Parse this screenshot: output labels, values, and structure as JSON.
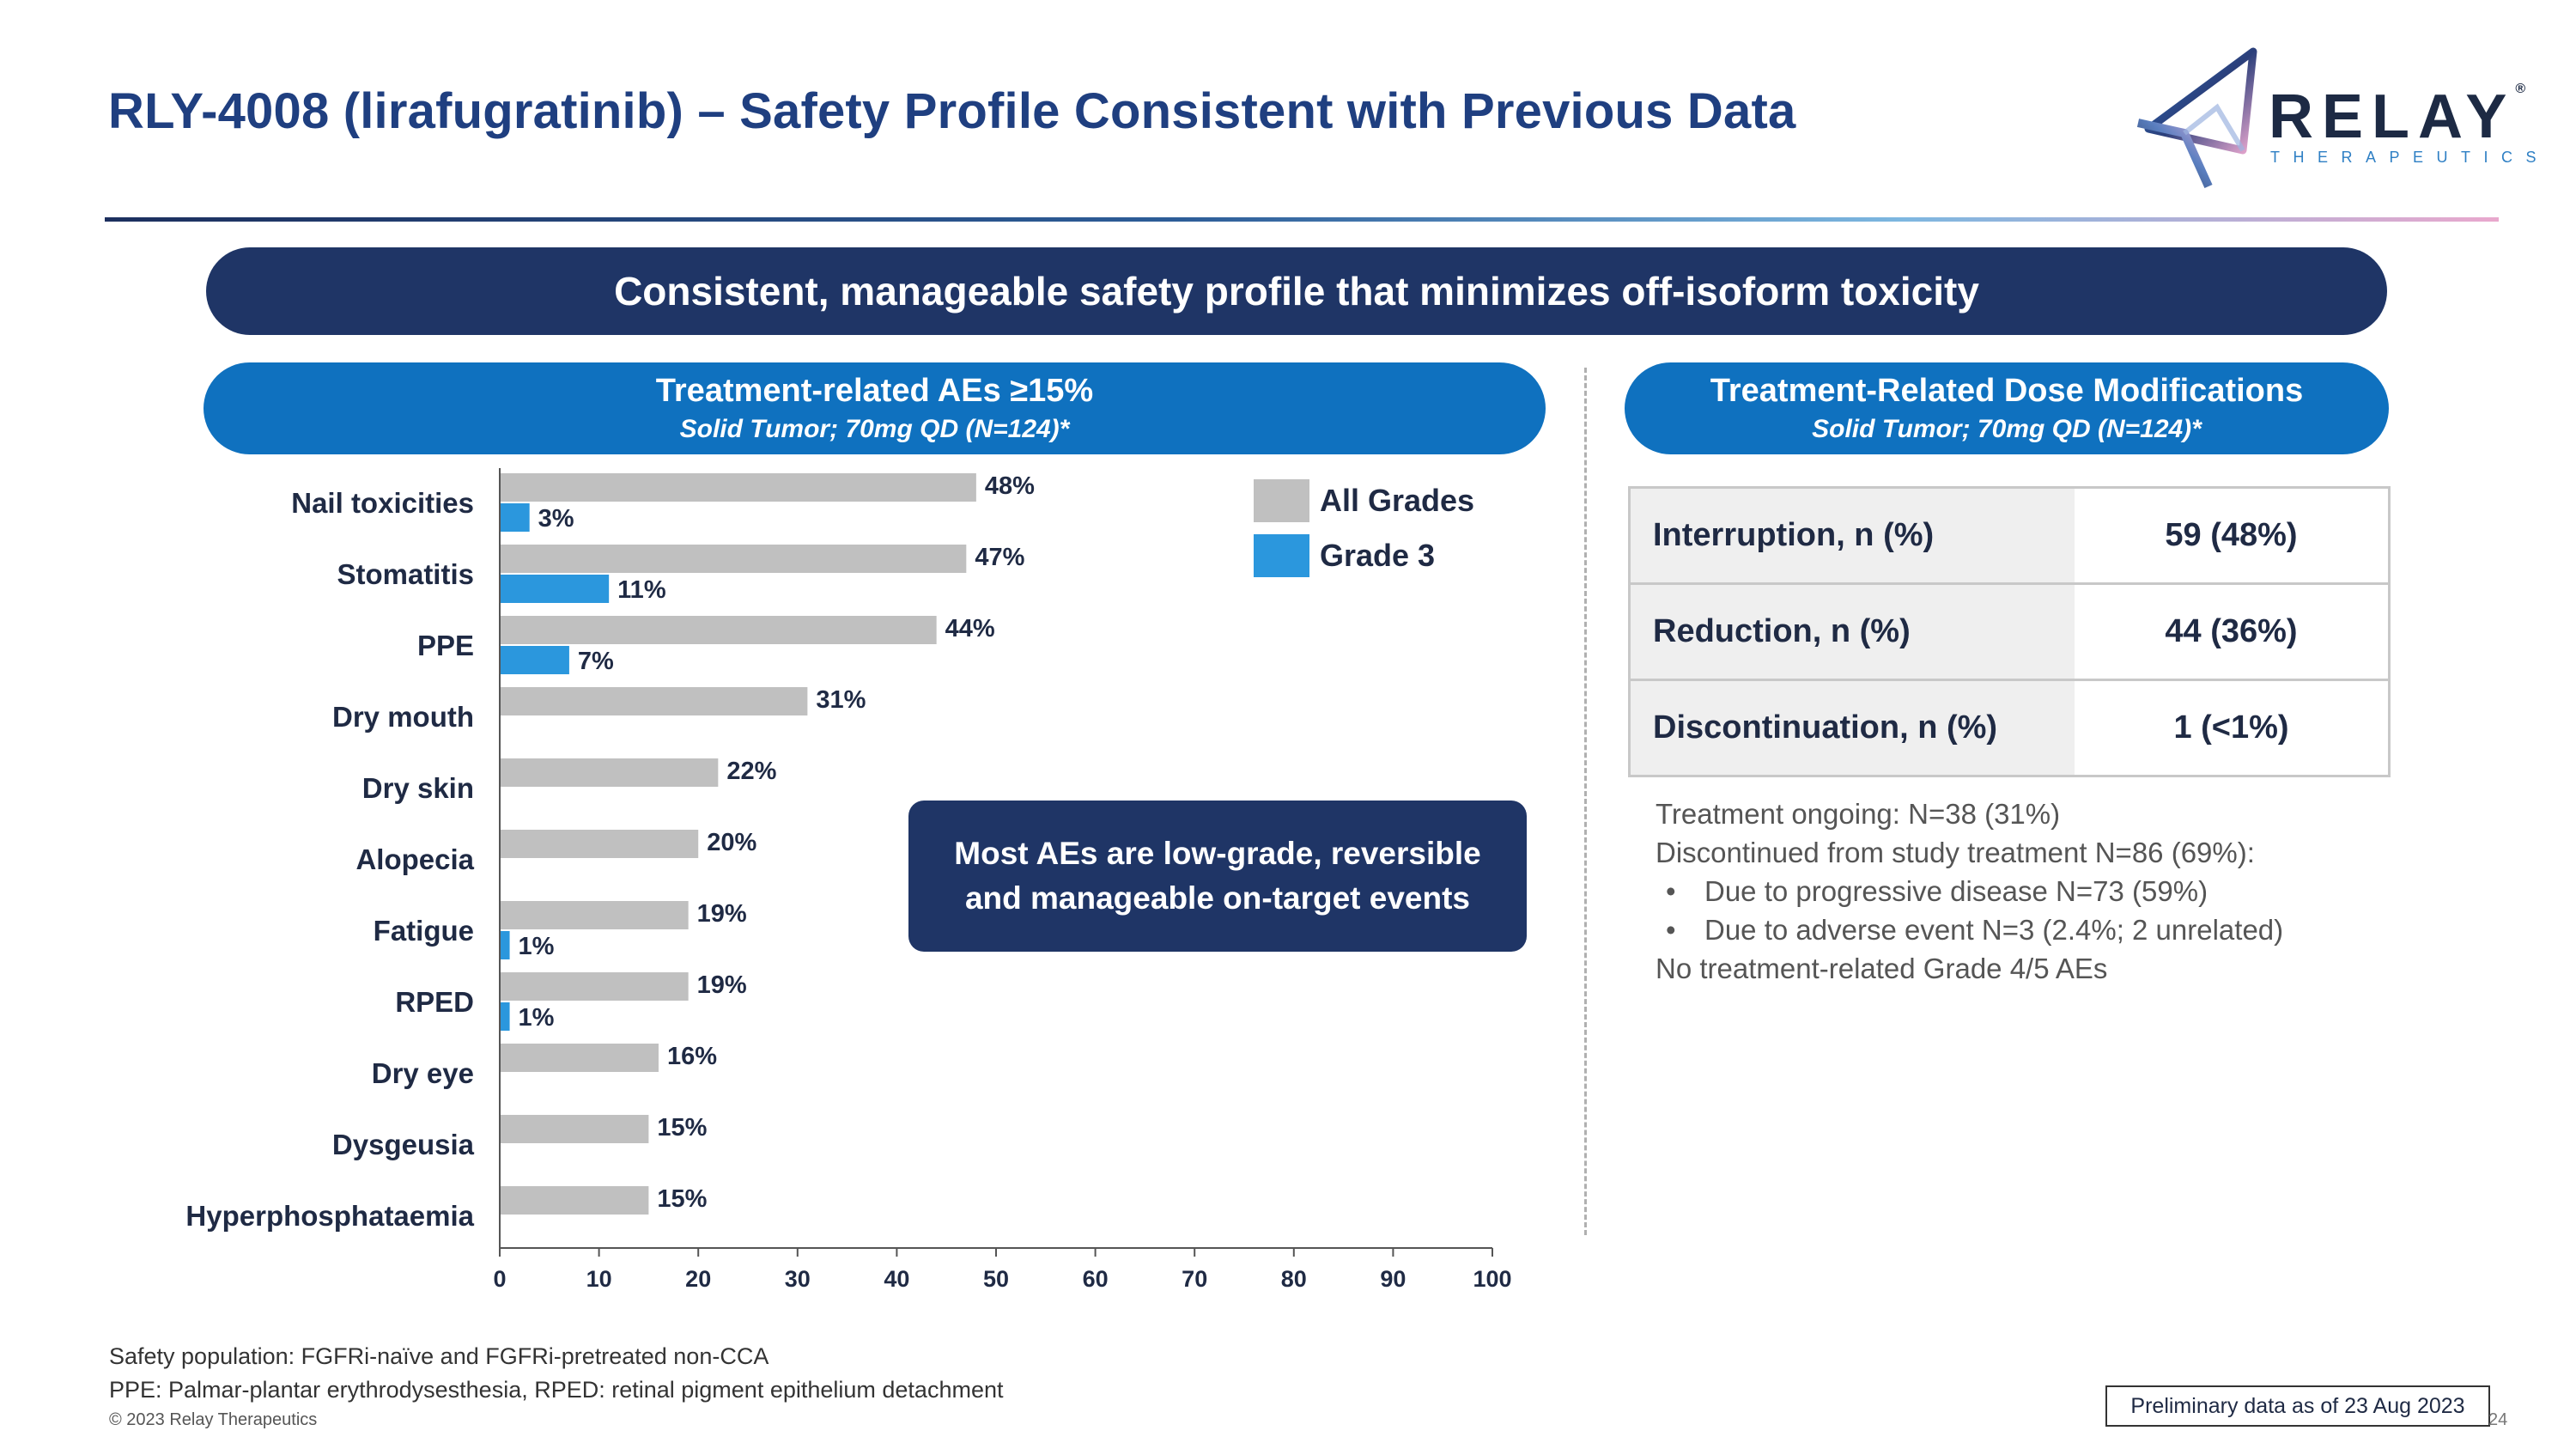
{
  "title": "RLY-4008 (lirafugratinib) – Safety Profile Consistent with Previous Data",
  "logo": {
    "name": "RELAY",
    "sub": "THERAPEUTICS",
    "mark": "®"
  },
  "banner": "Consistent, manageable safety profile that minimizes off-isoform toxicity",
  "left_panel": {
    "heading": "Treatment-related AEs ≥15%",
    "subheading": "Solid Tumor; 70mg QD (N=124)*"
  },
  "right_panel": {
    "heading": "Treatment-Related Dose Modifications",
    "subheading": "Solid Tumor; 70mg QD (N=124)*"
  },
  "chart_data": {
    "type": "bar",
    "orientation": "horizontal",
    "categories": [
      "Nail toxicities",
      "Stomatitis",
      "PPE",
      "Dry mouth",
      "Dry skin",
      "Alopecia",
      "Fatigue",
      "RPED",
      "Dry eye",
      "Dysgeusia",
      "Hyperphosphataemia"
    ],
    "series": [
      {
        "name": "All Grades",
        "color": "#c0c0c0",
        "values": [
          48,
          47,
          44,
          31,
          22,
          20,
          19,
          19,
          16,
          15,
          15
        ]
      },
      {
        "name": "Grade 3",
        "color": "#2b97dd",
        "values": [
          3,
          11,
          7,
          null,
          null,
          null,
          1,
          1,
          null,
          null,
          null
        ]
      }
    ],
    "xlim": [
      0,
      100
    ],
    "xticks": [
      0,
      10,
      20,
      30,
      40,
      50,
      60,
      70,
      80,
      90,
      100
    ],
    "value_suffix": "%",
    "legend_position": "top-right"
  },
  "callout": [
    "Most AEs are  low-grade, reversible",
    "and manageable on-target events"
  ],
  "dose_modifications": [
    {
      "label": "Interruption, n (%)",
      "value": "59 (48%)"
    },
    {
      "label": "Reduction, n (%)",
      "value": "44 (36%)"
    },
    {
      "label": "Discontinuation, n (%)",
      "value": "1 (<1%)"
    }
  ],
  "notes": {
    "ongoing": "Treatment ongoing: N=38 (31%)",
    "discontinued": "Discontinued from study treatment N=86 (69%):",
    "bullets": [
      "Due to progressive disease N=73 (59%)",
      "Due to adverse event N=3 (2.4%; 2 unrelated)"
    ],
    "no_grade45": "No treatment-related Grade 4/5 AEs"
  },
  "footnotes": [
    "Safety population: FGFRi-naïve and FGFRi-pretreated non-CCA",
    "PPE: Palmar-plantar erythrodysesthesia, RPED: retinal pigment epithelium detachment"
  ],
  "copyright": "© 2023 Relay Therapeutics",
  "preliminary": "Preliminary data as of 23 Aug 2023",
  "page_number": "24",
  "bullet_char": "•"
}
